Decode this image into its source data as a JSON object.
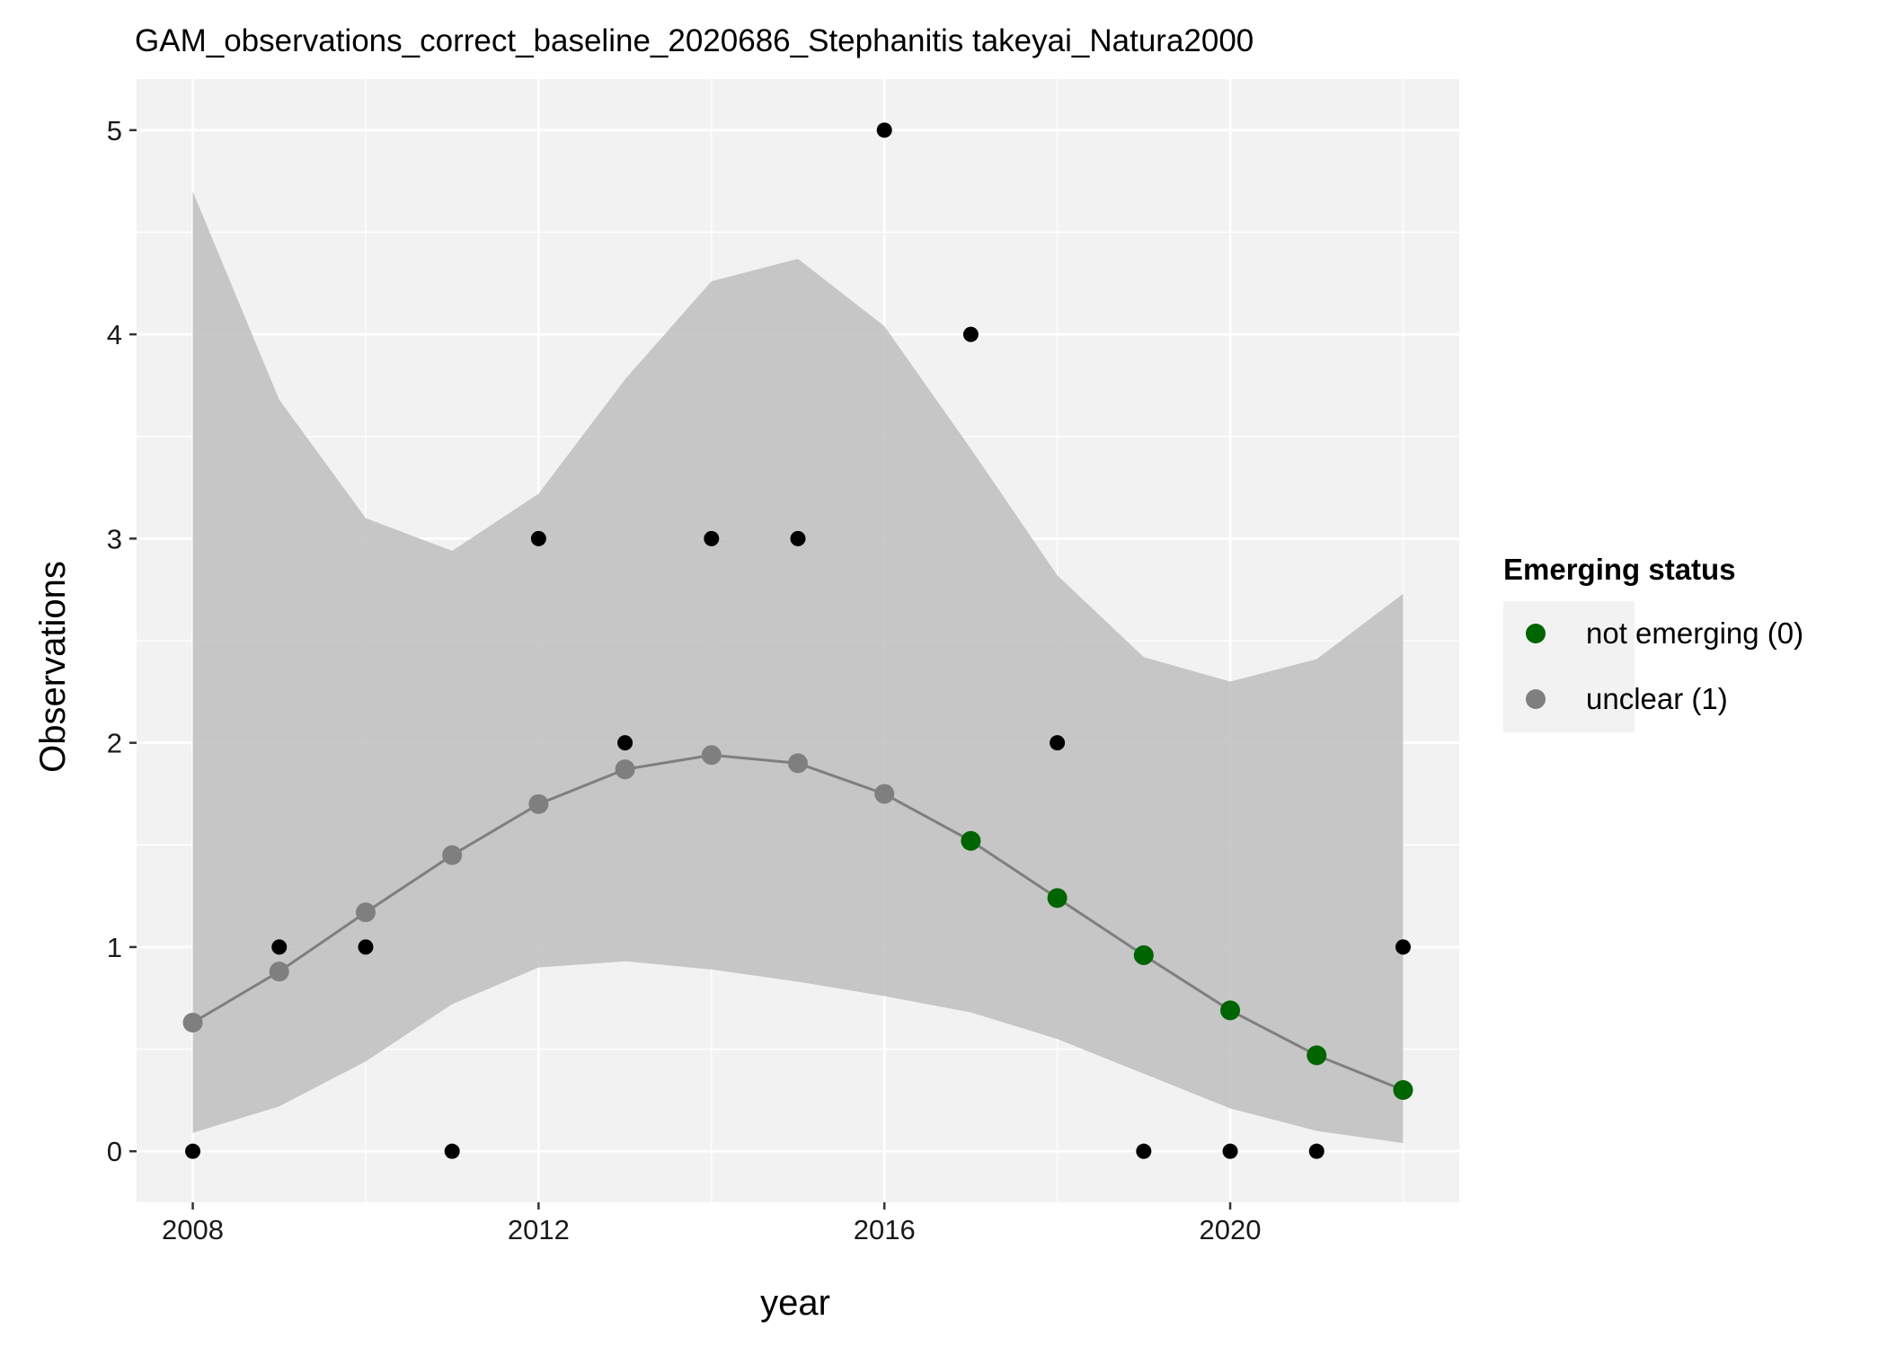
{
  "chart_data": {
    "type": "line",
    "title": "GAM_observations_correct_baseline_2020686_Stephanitis takeyai_Natura2000",
    "xlabel": "year",
    "ylabel": "Observations",
    "xlim": [
      2007.35,
      2022.65
    ],
    "ylim": [
      -0.25,
      5.25
    ],
    "x_ticks": [
      2008,
      2012,
      2016,
      2020
    ],
    "x_tick_labels": [
      "2008",
      "2012",
      "2016",
      "2020"
    ],
    "x_minor_ticks": [
      2010,
      2014,
      2018,
      2022
    ],
    "y_ticks": [
      0,
      1,
      2,
      3,
      4,
      5
    ],
    "y_tick_labels": [
      "0",
      "1",
      "2",
      "3",
      "4",
      "5"
    ],
    "y_minor_ticks": [
      0.5,
      1.5,
      2.5,
      3.5,
      4.5
    ],
    "grid": true,
    "legend_position": "right",
    "colors": {
      "panel": "#f2f2f2",
      "grid": "#ffffff",
      "ribbon": "#bebebe",
      "fit_line": "#7f7f7f",
      "observed": "#000000",
      "not_emerging": "#006400",
      "unclear": "#7f7f7f"
    },
    "observed": {
      "x": [
        2008,
        2009,
        2010,
        2011,
        2012,
        2013,
        2014,
        2015,
        2016,
        2017,
        2018,
        2019,
        2020,
        2021,
        2022
      ],
      "y": [
        0,
        1,
        1,
        0,
        3,
        2,
        3,
        3,
        5,
        4,
        2,
        0,
        0,
        0,
        1
      ]
    },
    "fitted": {
      "x": [
        2008,
        2009,
        2010,
        2011,
        2012,
        2013,
        2014,
        2015,
        2016,
        2017,
        2018,
        2019,
        2020,
        2021,
        2022
      ],
      "y": [
        0.63,
        0.88,
        1.17,
        1.45,
        1.7,
        1.87,
        1.94,
        1.9,
        1.75,
        1.52,
        1.24,
        0.96,
        0.69,
        0.47,
        0.3
      ],
      "status": [
        "unclear",
        "unclear",
        "unclear",
        "unclear",
        "unclear",
        "unclear",
        "unclear",
        "unclear",
        "unclear",
        "not_emerging",
        "not_emerging",
        "not_emerging",
        "not_emerging",
        "not_emerging",
        "not_emerging"
      ]
    },
    "ribbon": {
      "x": [
        2008,
        2009,
        2010,
        2011,
        2012,
        2013,
        2014,
        2015,
        2016,
        2017,
        2018,
        2019,
        2020,
        2021,
        2022
      ],
      "lower": [
        0.09,
        0.22,
        0.44,
        0.72,
        0.9,
        0.93,
        0.89,
        0.83,
        0.76,
        0.68,
        0.55,
        0.38,
        0.21,
        0.1,
        0.04
      ],
      "upper": [
        4.7,
        3.68,
        3.1,
        2.94,
        3.22,
        3.78,
        4.26,
        4.37,
        4.04,
        3.44,
        2.82,
        2.42,
        2.3,
        2.41,
        2.73
      ]
    },
    "legend": {
      "title": "Emerging status",
      "entries": [
        {
          "key": "not_emerging",
          "label": "not emerging (0)"
        },
        {
          "key": "unclear",
          "label": "unclear (1)"
        }
      ]
    }
  }
}
